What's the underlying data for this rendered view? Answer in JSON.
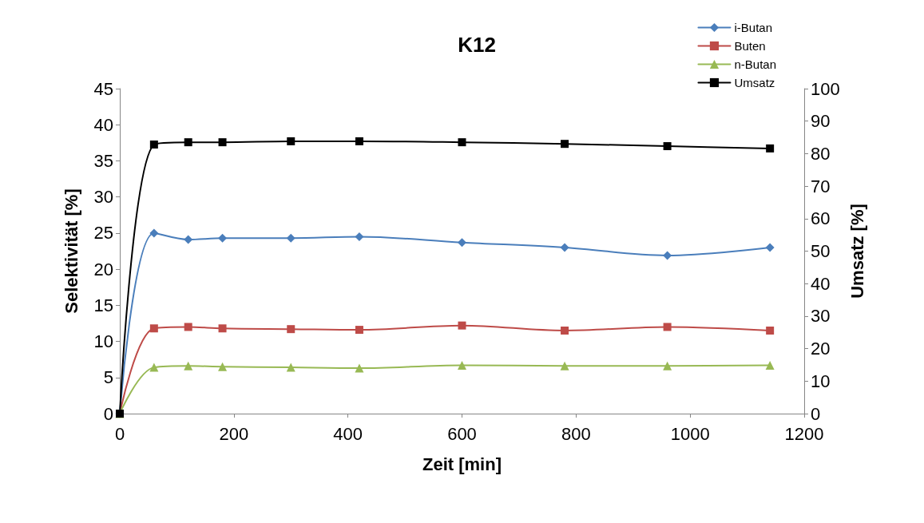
{
  "chart_data": {
    "type": "line",
    "title": "K12",
    "xlabel": "Zeit [min]",
    "ylabel": "Selektivität [%]",
    "y2label": "Umsatz [%]",
    "x": [
      0,
      60,
      120,
      180,
      300,
      420,
      600,
      780,
      960,
      1140
    ],
    "xlim": [
      0,
      1200
    ],
    "xticks": [
      0,
      200,
      400,
      600,
      800,
      1000,
      1200
    ],
    "ylim": [
      0,
      45
    ],
    "yticks": [
      0,
      5,
      10,
      15,
      20,
      25,
      30,
      35,
      40,
      45
    ],
    "y2lim": [
      0,
      100
    ],
    "y2ticks": [
      0,
      10,
      20,
      30,
      40,
      50,
      60,
      70,
      80,
      90,
      100
    ],
    "grid": false,
    "legend": "top right",
    "series": [
      {
        "name": "i-Butan",
        "color": "#4a7ebb",
        "marker": "diamond",
        "values": [
          0,
          25,
          24.1,
          24.3,
          24.3,
          24.5,
          23.7,
          23.0,
          21.9,
          23.0
        ]
      },
      {
        "name": "Buten",
        "color": "#be4b48",
        "marker": "square",
        "values": [
          0,
          11.8,
          12.0,
          11.8,
          11.7,
          11.6,
          12.2,
          11.5,
          12.0,
          11.5
        ]
      },
      {
        "name": "n-Butan",
        "color": "#98b954",
        "marker": "triangle",
        "values": [
          0,
          6.4,
          6.6,
          6.5,
          6.4,
          6.3,
          6.7,
          6.6,
          6.6,
          6.7
        ]
      },
      {
        "name": "Umsatz",
        "color": "#000000",
        "marker": "square",
        "axis": "y2",
        "values": [
          0,
          82.8,
          83.5,
          83.5,
          83.8,
          83.8,
          83.5,
          83.0,
          82.3,
          81.6
        ]
      }
    ]
  }
}
